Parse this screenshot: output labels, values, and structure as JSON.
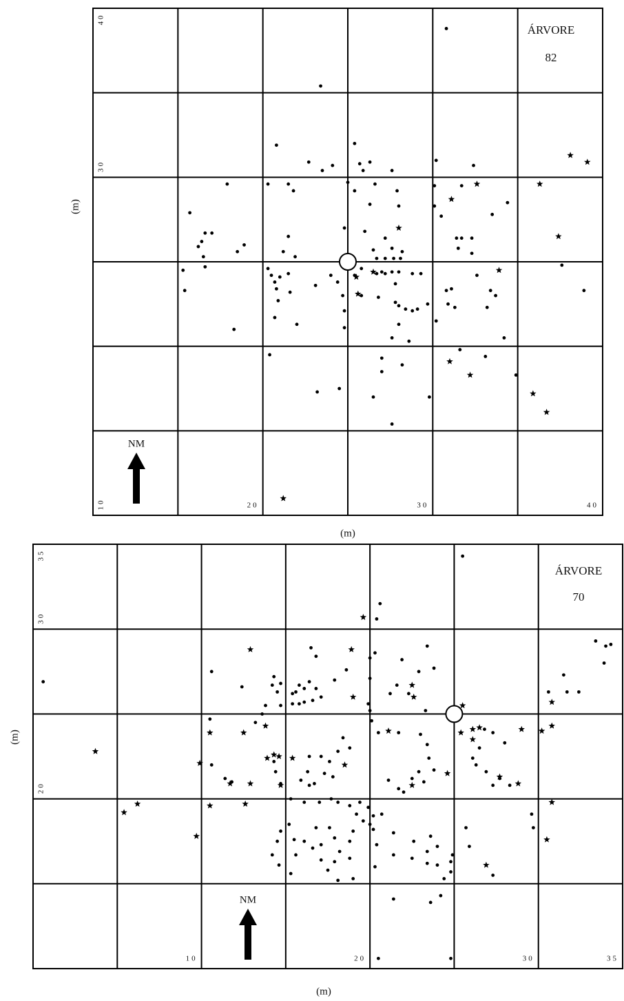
{
  "chart_data": [
    {
      "type": "scatter",
      "title": [
        "ÁRVORE",
        "82"
      ],
      "nm_label": "NM",
      "xlabel": "(m)",
      "ylabel": "(m)",
      "xlim": [
        10,
        40
      ],
      "ylim": [
        10,
        40
      ],
      "xticks": [
        20,
        30,
        40
      ],
      "yticks": [
        40,
        30,
        10
      ],
      "xgrid": [
        15,
        20,
        25,
        30,
        35
      ],
      "ygrid": [
        15,
        20,
        25,
        30,
        35
      ],
      "color": "#000000",
      "center": {
        "x": 25,
        "y": 25
      },
      "series": [
        {
          "marker": "dot",
          "x": [
            30.8,
            23.4,
            20.8,
            22.7,
            23.5,
            24.1,
            25.4,
            25.7,
            25.9,
            26.3,
            27.6,
            30.2,
            32.4,
            17.9,
            20.3,
            21.5,
            21.8,
            25.0,
            25.4,
            26.6,
            27.9,
            30.1,
            31.7,
            34.4,
            15.7,
            16.6,
            17.0,
            16.4,
            16.2,
            16.5,
            18.5,
            18.9,
            21.5,
            21.2,
            21.9,
            26.3,
            28.0,
            30.1,
            30.5,
            33.5,
            24.8,
            26.0,
            26.5,
            27.2,
            27.6,
            28.2,
            26.7,
            27.2,
            27.7,
            28.1,
            31.4,
            31.7,
            32.3,
            31.5,
            32.3,
            15.3,
            15.4,
            16.6,
            20.3,
            20.5,
            20.7,
            20.8,
            21.0,
            21.5,
            21.6,
            20.9,
            20.7,
            22.0,
            23.1,
            24.0,
            24.4,
            24.7,
            24.8,
            24.8,
            25.4,
            25.8,
            26.7,
            27.0,
            25.8,
            26.8,
            27.2,
            27.6,
            28.0,
            28.8,
            29.3,
            27.8,
            27.8,
            28.0,
            28.4,
            28.8,
            29.1,
            29.7,
            30.8,
            31.1,
            30.9,
            31.3,
            32.6,
            33.4,
            33.7,
            33.2,
            30.2,
            28.0,
            27.6,
            28.6,
            34.2,
            37.6,
            38.9,
            18.3,
            20.4,
            27.0,
            28.2,
            27.0,
            31.6,
            33.1,
            34.9,
            23.2,
            24.5,
            26.5,
            29.8,
            27.6
          ],
          "y": [
            38.8,
            35.4,
            31.9,
            30.9,
            30.4,
            30.7,
            32.0,
            30.8,
            30.4,
            30.9,
            30.4,
            31.0,
            30.7,
            29.6,
            29.6,
            29.6,
            29.2,
            29.7,
            29.2,
            29.6,
            29.2,
            29.5,
            29.5,
            28.5,
            27.9,
            26.7,
            26.7,
            26.2,
            25.9,
            25.3,
            25.6,
            26.0,
            26.5,
            25.6,
            25.3,
            28.4,
            28.3,
            28.3,
            27.7,
            27.8,
            27.0,
            26.8,
            25.7,
            26.4,
            25.8,
            25.6,
            25.2,
            25.2,
            25.2,
            25.2,
            26.4,
            26.4,
            26.4,
            25.8,
            25.5,
            24.5,
            23.3,
            24.7,
            24.6,
            24.2,
            23.8,
            23.4,
            24.1,
            24.3,
            23.2,
            22.7,
            21.7,
            21.3,
            23.6,
            24.2,
            23.8,
            23.0,
            22.1,
            21.1,
            24.2,
            24.6,
            24.3,
            24.4,
            23.0,
            22.9,
            24.3,
            24.4,
            24.4,
            24.3,
            24.3,
            23.7,
            22.6,
            22.4,
            22.2,
            22.1,
            22.2,
            22.5,
            23.3,
            23.4,
            22.5,
            22.3,
            24.2,
            23.3,
            23.0,
            22.3,
            21.5,
            21.3,
            20.5,
            20.3,
            20.5,
            24.8,
            23.3,
            21.0,
            19.5,
            19.3,
            18.9,
            18.5,
            19.8,
            19.4,
            18.3,
            17.3,
            17.5,
            17.0,
            17.0,
            15.4
          ]
        },
        {
          "marker": "star",
          "x": [
            38.1,
            39.1,
            32.6,
            31.1,
            36.3,
            28.0,
            37.4,
            25.5,
            26.5,
            33.9,
            25.6,
            31.0,
            32.2,
            35.9,
            36.7,
            21.2
          ],
          "y": [
            31.3,
            30.9,
            29.6,
            28.7,
            29.6,
            27.0,
            26.5,
            24.1,
            24.4,
            24.5,
            23.1,
            19.1,
            18.3,
            17.2,
            16.1,
            11.0
          ]
        }
      ]
    },
    {
      "type": "scatter",
      "title": [
        "ÁRVORE",
        "70"
      ],
      "nm_label": "NM",
      "xlabel": "(m)",
      "ylabel": "(m)",
      "xlim": [
        0,
        35
      ],
      "ylim": [
        10,
        35
      ],
      "xticks": [
        10,
        20,
        30,
        35
      ],
      "yticks": [
        35,
        30,
        20
      ],
      "xgrid": [
        5,
        10,
        15,
        20,
        25,
        30
      ],
      "ygrid": [
        15,
        20,
        25,
        30
      ],
      "color": "#000000",
      "center": {
        "x": 25,
        "y": 25
      },
      "series": [
        {
          "marker": "dot",
          "x": [
            25.5,
            20.6,
            20.4,
            16.5,
            16.8,
            23.4,
            20.0,
            20.3,
            21.9,
            23.8,
            22.9,
            33.4,
            34.0,
            34.3,
            33.9,
            31.5,
            30.6,
            31.7,
            32.4,
            10.6,
            12.4,
            14.3,
            14.2,
            14.7,
            14.5,
            13.8,
            14.7,
            13.6,
            15.8,
            16.4,
            16.8,
            17.1,
            15.4,
            15.8,
            16.1,
            16.6,
            15.4,
            15.6,
            16.1,
            17.9,
            18.6,
            19.9,
            20.0,
            21.2,
            21.6,
            22.3,
            23.3,
            10.5,
            13.2,
            10.6,
            11.4,
            11.8,
            14.4,
            14.3,
            14.7,
            16.4,
            17.1,
            17.6,
            18.1,
            18.8,
            18.4,
            20.0,
            20.1,
            20.5,
            21.7,
            23.0,
            23.4,
            23.5,
            23.8,
            22.9,
            22.5,
            23.2,
            21.1,
            21.7,
            22.0,
            17.8,
            17.3,
            16.7,
            16.4,
            15.9,
            16.3,
            26.8,
            27.3,
            28.0,
            26.5,
            26.1,
            26.3,
            26.9,
            27.7,
            27.3,
            28.3,
            29.6,
            15.3,
            16.1,
            17.0,
            17.7,
            18.1,
            18.8,
            19.4,
            19.9,
            20.2,
            20.7,
            20.0,
            19.2,
            19.6,
            14.7,
            14.5,
            14.2,
            14.6,
            15.2,
            15.5,
            15.6,
            16.1,
            16.6,
            16.8,
            17.1,
            17.6,
            17.9,
            18.2,
            17.9,
            17.5,
            17.1,
            18.8,
            19.0,
            18.8,
            19.0,
            18.1,
            15.3,
            20.2,
            20.4,
            20.3,
            21.4,
            21.4,
            22.6,
            22.5,
            23.6,
            23.4,
            24.0,
            23.4,
            24.0,
            24.9,
            24.8,
            24.8,
            24.4,
            25.7,
            25.9,
            27.3,
            21.4,
            23.6,
            24.2,
            29.7,
            20.5,
            24.8,
            0.6
          ],
          "y": [
            34.3,
            31.5,
            30.6,
            28.9,
            28.4,
            29.0,
            28.3,
            28.6,
            28.2,
            27.7,
            27.5,
            29.3,
            29.0,
            29.1,
            28.0,
            27.3,
            26.3,
            26.3,
            26.3,
            27.5,
            26.6,
            27.2,
            26.7,
            26.8,
            26.3,
            25.5,
            25.5,
            25.0,
            26.7,
            26.9,
            26.5,
            26.0,
            25.6,
            25.6,
            25.7,
            25.8,
            26.2,
            26.3,
            26.5,
            27.0,
            27.6,
            25.6,
            27.1,
            26.2,
            26.7,
            26.2,
            25.2,
            24.7,
            24.5,
            22.0,
            21.2,
            21.0,
            21.6,
            22.2,
            20.9,
            22.5,
            22.5,
            22.2,
            22.8,
            23.0,
            23.6,
            25.2,
            24.6,
            23.9,
            23.9,
            23.8,
            23.2,
            22.4,
            21.7,
            21.6,
            21.2,
            21.0,
            21.1,
            20.6,
            20.4,
            21.3,
            21.5,
            20.9,
            20.8,
            21.1,
            21.6,
            24.1,
            23.9,
            23.3,
            23.0,
            22.4,
            22.0,
            21.6,
            21.2,
            20.8,
            20.8,
            19.1,
            20.0,
            19.8,
            19.8,
            20.0,
            19.8,
            19.6,
            19.8,
            19.5,
            19.0,
            19.1,
            18.5,
            19.1,
            18.7,
            18.1,
            17.5,
            16.7,
            16.1,
            18.5,
            17.6,
            16.7,
            17.5,
            17.1,
            18.3,
            17.3,
            18.3,
            17.7,
            16.9,
            16.3,
            15.8,
            16.4,
            17.5,
            18.1,
            16.5,
            15.3,
            15.2,
            15.6,
            18.2,
            17.3,
            16.0,
            18.0,
            16.7,
            17.5,
            16.5,
            17.8,
            16.9,
            17.2,
            16.2,
            16.1,
            16.7,
            16.3,
            15.7,
            15.3,
            18.3,
            17.2,
            15.5,
            14.1,
            13.9,
            14.3,
            18.3,
            10.6,
            10.6,
            26.9
          ]
        },
        {
          "marker": "star",
          "x": [
            19.6,
            12.9,
            18.9,
            22.5,
            22.6,
            19.0,
            30.8,
            25.5,
            30.8,
            10.5,
            13.8,
            12.5,
            21.1,
            25.4,
            26.1,
            26.5,
            26.1,
            29.0,
            30.2,
            3.7,
            13.9,
            14.3,
            14.6,
            15.4,
            9.9,
            18.5,
            24.6,
            27.7,
            28.8,
            11.7,
            12.9,
            14.7,
            22.5,
            6.2,
            5.4,
            10.5,
            12.6,
            30.8,
            9.7,
            30.5,
            26.9
          ],
          "y": [
            30.7,
            28.8,
            28.8,
            26.7,
            26.0,
            26.0,
            25.7,
            25.5,
            24.3,
            23.9,
            24.3,
            23.9,
            24.0,
            23.9,
            24.1,
            24.2,
            23.5,
            24.1,
            24.0,
            22.8,
            22.4,
            22.6,
            22.5,
            22.4,
            22.1,
            22.0,
            21.5,
            21.3,
            20.9,
            20.9,
            20.9,
            20.8,
            20.8,
            19.7,
            19.2,
            19.6,
            19.7,
            19.8,
            17.8,
            17.6,
            16.1
          ]
        }
      ]
    }
  ]
}
